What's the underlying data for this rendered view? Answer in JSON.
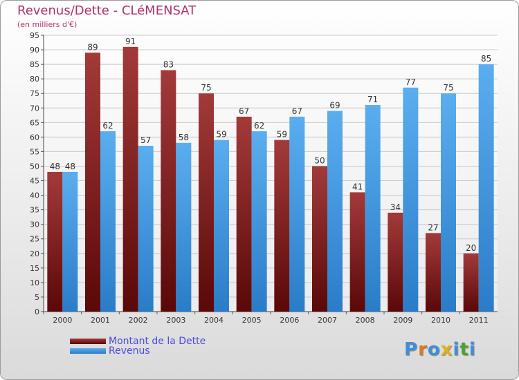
{
  "chart_data": {
    "type": "bar",
    "title": "Revenus/Dette - CLéMENSAT",
    "subtitle": "(en milliers d'€)",
    "categories": [
      "2000",
      "2001",
      "2002",
      "2003",
      "2004",
      "2005",
      "2006",
      "2007",
      "2008",
      "2009",
      "2010",
      "2011"
    ],
    "series": [
      {
        "name": "Montant de la Dette",
        "color": "#7a1a1a",
        "values": [
          48,
          89,
          91,
          83,
          75,
          67,
          59,
          50,
          41,
          34,
          27,
          20
        ]
      },
      {
        "name": "Revenus",
        "color": "#3d95dd",
        "values": [
          48,
          62,
          57,
          58,
          59,
          62,
          67,
          69,
          71,
          77,
          75,
          85
        ]
      }
    ],
    "ylim": [
      0,
      95
    ],
    "yticks": [
      0,
      5,
      10,
      15,
      20,
      25,
      30,
      35,
      40,
      45,
      50,
      55,
      60,
      65,
      70,
      75,
      80,
      85,
      90,
      95
    ],
    "grid": true,
    "legend_position": "bottom-left"
  },
  "logo": {
    "text": "Proxiti",
    "colors": [
      "#3d8fd8",
      "#e07820",
      "#3d8fd8",
      "#e0b020",
      "#3d8fd8",
      "#50a030",
      "#3d8fd8"
    ]
  }
}
